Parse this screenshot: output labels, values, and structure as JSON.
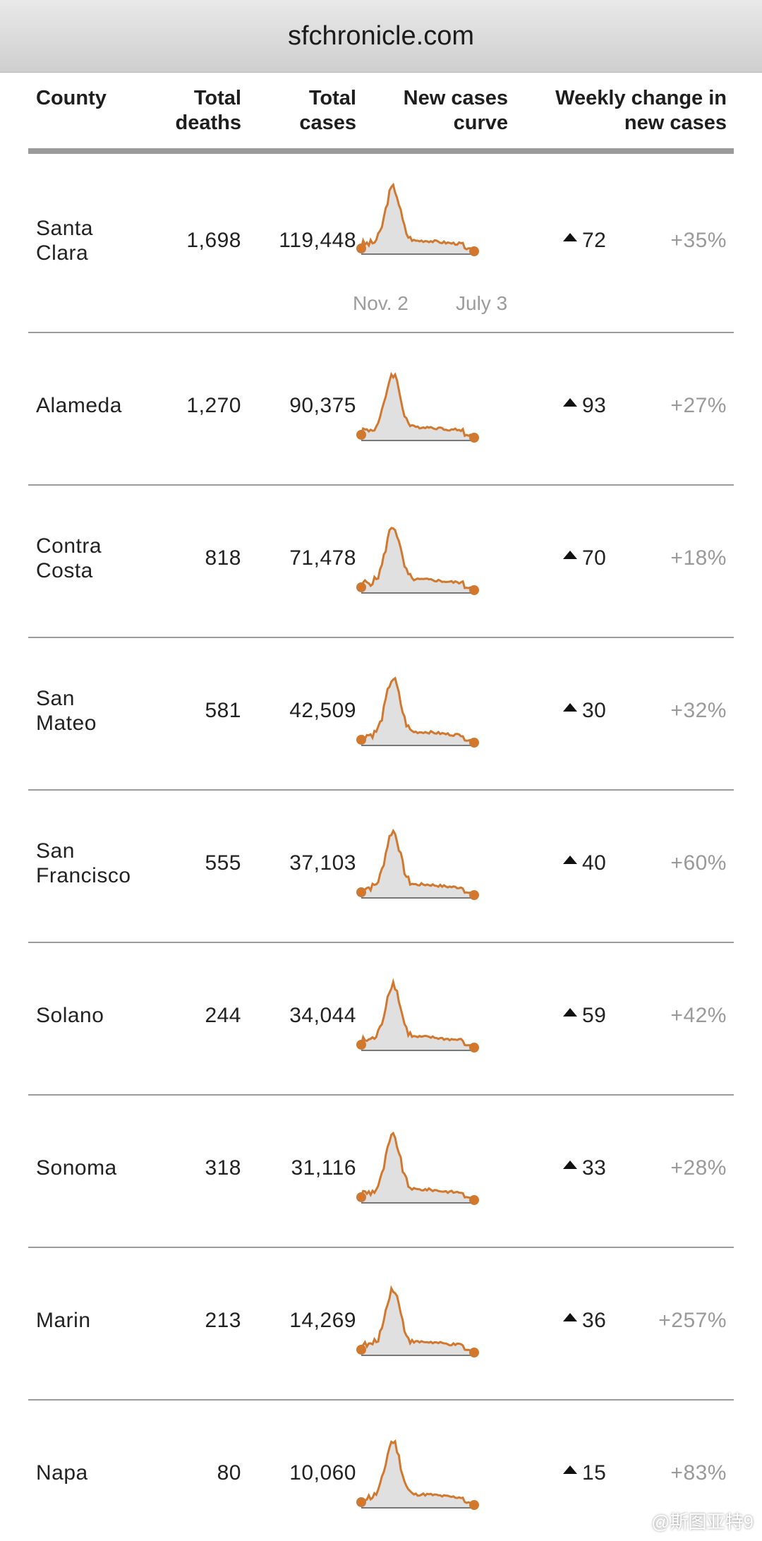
{
  "browser": {
    "url": "sfchronicle.com"
  },
  "header": {
    "county": "County",
    "deaths": [
      "Total",
      "deaths"
    ],
    "cases": [
      "Total",
      "cases"
    ],
    "curve": [
      "New cases",
      "curve"
    ],
    "weekly": [
      "Weekly change in",
      "new cases"
    ]
  },
  "axis": {
    "start": "Nov. 2",
    "end": "July 3"
  },
  "rows": [
    {
      "county": [
        "Santa",
        "Clara"
      ],
      "deaths": "1,698",
      "cases": "119,448",
      "change": "72",
      "pct": "+35%"
    },
    {
      "county": [
        "Alameda"
      ],
      "deaths": "1,270",
      "cases": "90,375",
      "change": "93",
      "pct": "+27%"
    },
    {
      "county": [
        "Contra",
        "Costa"
      ],
      "deaths": "818",
      "cases": "71,478",
      "change": "70",
      "pct": "+18%"
    },
    {
      "county": [
        "San",
        "Mateo"
      ],
      "deaths": "581",
      "cases": "42,509",
      "change": "30",
      "pct": "+32%"
    },
    {
      "county": [
        "San",
        "Francisco"
      ],
      "deaths": "555",
      "cases": "37,103",
      "change": "40",
      "pct": "+60%"
    },
    {
      "county": [
        "Solano"
      ],
      "deaths": "244",
      "cases": "34,044",
      "change": "59",
      "pct": "+42%"
    },
    {
      "county": [
        "Sonoma"
      ],
      "deaths": "318",
      "cases": "31,116",
      "change": "33",
      "pct": "+28%"
    },
    {
      "county": [
        "Marin"
      ],
      "deaths": "213",
      "cases": "14,269",
      "change": "36",
      "pct": "+257%"
    },
    {
      "county": [
        "Napa"
      ],
      "deaths": "80",
      "cases": "10,060",
      "change": "15",
      "pct": "+83%"
    }
  ],
  "watermark": "@斯图亚特9",
  "colors": {
    "curve": "#d2782e",
    "fill": "#e0e0e0",
    "divider": "#9c9c9c",
    "pct": "#9a9a9a"
  },
  "icons": {
    "change": "triangle-up-icon"
  }
}
